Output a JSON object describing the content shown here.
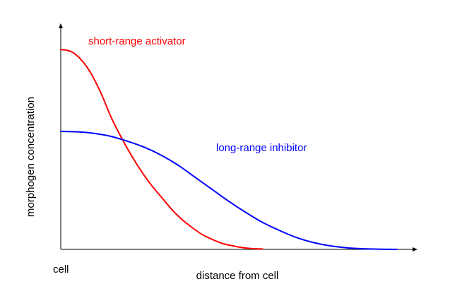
{
  "chart_data": {
    "type": "line",
    "title": "",
    "xlabel": "distance from cell",
    "ylabel": "morphogen concentration",
    "x_origin_label": "cell",
    "ticks": "none",
    "grid": false,
    "legend": "none (series labelled directly on the plot)",
    "xlim": [
      0,
      100
    ],
    "ylim": [
      0,
      100
    ],
    "series": [
      {
        "name": "short-range activator",
        "color": "#ff0000",
        "x": [
          0,
          3,
          6,
          9,
          12,
          15,
          18,
          21,
          24,
          27,
          30,
          33,
          36,
          39,
          42,
          45,
          48,
          51,
          54,
          57,
          60
        ],
        "y": [
          100,
          99,
          95,
          88,
          78,
          66,
          56,
          47,
          39,
          32,
          26,
          20,
          15,
          11,
          7.5,
          5,
          3,
          1.8,
          0.9,
          0.4,
          0.2
        ]
      },
      {
        "name": "long-range inhibitor",
        "color": "#0000ff",
        "x": [
          0,
          5,
          10,
          15,
          20,
          25,
          30,
          35,
          40,
          45,
          50,
          55,
          60,
          65,
          70,
          75,
          80,
          85,
          90,
          95,
          100
        ],
        "y": [
          59,
          58.8,
          58,
          56.5,
          54,
          51,
          47,
          42,
          36,
          30,
          24,
          18.5,
          13.5,
          9.5,
          6,
          3.5,
          1.8,
          0.8,
          0.3,
          0.1,
          0
        ]
      }
    ]
  }
}
